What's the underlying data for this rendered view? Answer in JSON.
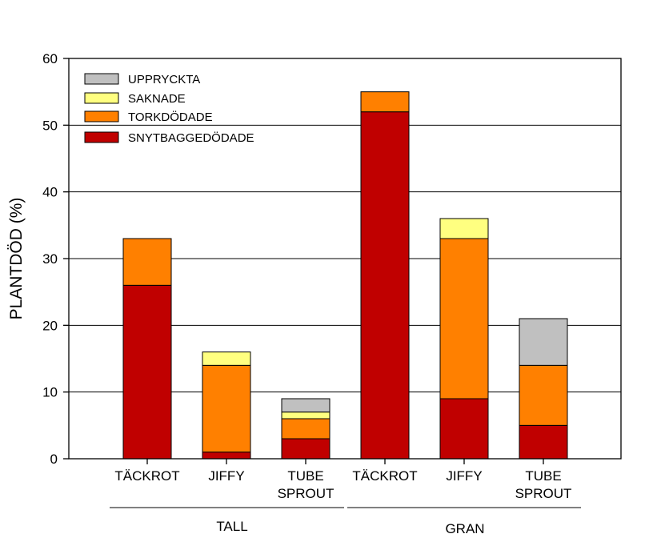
{
  "chart_data": {
    "type": "bar",
    "stacked": true,
    "ylabel": "PLANTDÖD (%)",
    "xlabel": "",
    "ylim": [
      0,
      60
    ],
    "yticks": [
      0,
      10,
      20,
      30,
      40,
      50,
      60
    ],
    "grid": "horizontal",
    "legend_position": "top-left",
    "categories": [
      [
        "TÄCKROT"
      ],
      [
        "JIFFY"
      ],
      [
        "TUBE",
        "SPROUT"
      ],
      [
        "TÄCKROT"
      ],
      [
        "JIFFY"
      ],
      [
        "TUBE",
        "SPROUT"
      ]
    ],
    "groups": [
      {
        "label": "TALL",
        "start": 0,
        "end": 2
      },
      {
        "label": "GRAN",
        "start": 3,
        "end": 5
      }
    ],
    "series": [
      {
        "name": "SNYTBAGGEDÖDADE",
        "color": "#c00000",
        "values": [
          26,
          1,
          3,
          52,
          9,
          5
        ]
      },
      {
        "name": "TORKDÖDADE",
        "color": "#ff8000",
        "values": [
          7,
          13,
          3,
          3,
          24,
          9
        ]
      },
      {
        "name": "SAKNADE",
        "color": "#ffff80",
        "values": [
          0,
          2,
          1,
          0,
          3,
          0
        ]
      },
      {
        "name": "UPPRYCKTA",
        "color": "#c0c0c0",
        "values": [
          0,
          0,
          2,
          0,
          0,
          7
        ]
      }
    ],
    "legend_order": [
      "UPPRYCKTA",
      "SAKNADE",
      "TORKDÖDADE",
      "SNYTBAGGEDÖDADE"
    ]
  }
}
